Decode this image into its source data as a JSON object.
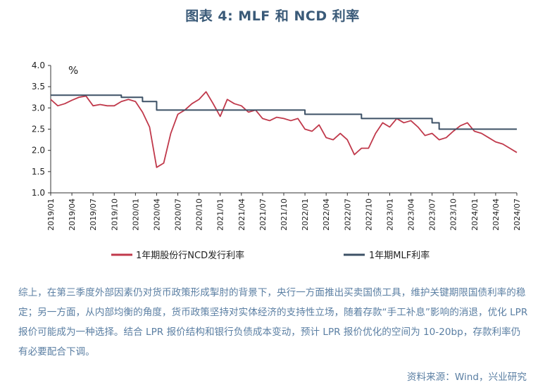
{
  "title": "图表 4:  MLF 和 NCD 利率",
  "paragraph": "综上，在第三季度外部因素仍对货币政策形成掣肘的背景下，央行一方面推出买卖国债工具，维护关键期限国债利率的稳定；另一方面，从内部均衡的角度，货币政策坚持对实体经济的支持性立场，随着存款“手工补息”影响的消退，优化 LPR 报价可能成为一种选择。结合 LPR 报价结构和银行负债成本变动，预计 LPR 报价优化的空间为 10-20bp，存款利率仍有必要配合下调。",
  "source": "资料来源：Wind，兴业研究",
  "colors": {
    "ncd": "#c0394b",
    "mlf": "#3d5166",
    "text_blue": "#5b7fa3",
    "title": "#3a5a78"
  },
  "chart_data": {
    "type": "line",
    "unit": "%",
    "ylim": [
      1.0,
      4.0
    ],
    "yticks": [
      "4.0",
      "3.5",
      "3.0",
      "2.5",
      "2.0",
      "1.5",
      "1.0"
    ],
    "xticks": [
      "2019/01",
      "2019/04",
      "2019/07",
      "2019/10",
      "2020/01",
      "2020/04",
      "2020/07",
      "2020/10",
      "2021/01",
      "2021/04",
      "2021/07",
      "2021/10",
      "2022/01",
      "2022/04",
      "2022/07",
      "2022/10",
      "2023/01",
      "2023/04",
      "2023/07",
      "2023/10",
      "2024/01",
      "2024/04",
      "2024/07"
    ],
    "legend_position": "bottom",
    "grid": false,
    "series": [
      {
        "name": "1年期股份行NCD发行利率",
        "color": "#c0394b",
        "x": [
          "2019/01",
          "2019/02",
          "2019/03",
          "2019/04",
          "2019/05",
          "2019/06",
          "2019/07",
          "2019/08",
          "2019/09",
          "2019/10",
          "2019/11",
          "2019/12",
          "2020/01",
          "2020/02",
          "2020/03",
          "2020/04",
          "2020/05",
          "2020/06",
          "2020/07",
          "2020/08",
          "2020/09",
          "2020/10",
          "2020/11",
          "2020/12",
          "2021/01",
          "2021/02",
          "2021/03",
          "2021/04",
          "2021/05",
          "2021/06",
          "2021/07",
          "2021/08",
          "2021/09",
          "2021/10",
          "2021/11",
          "2021/12",
          "2022/01",
          "2022/02",
          "2022/03",
          "2022/04",
          "2022/05",
          "2022/06",
          "2022/07",
          "2022/08",
          "2022/09",
          "2022/10",
          "2022/11",
          "2022/12",
          "2023/01",
          "2023/02",
          "2023/03",
          "2023/04",
          "2023/05",
          "2023/06",
          "2023/07",
          "2023/08",
          "2023/09",
          "2023/10",
          "2023/11",
          "2023/12",
          "2024/01",
          "2024/02",
          "2024/03",
          "2024/04",
          "2024/05",
          "2024/06",
          "2024/07"
        ],
        "values": [
          3.2,
          3.05,
          3.1,
          3.18,
          3.25,
          3.28,
          3.05,
          3.08,
          3.05,
          3.05,
          3.15,
          3.2,
          3.15,
          2.9,
          2.55,
          1.6,
          1.7,
          2.4,
          2.85,
          2.95,
          3.1,
          3.2,
          3.38,
          3.1,
          2.8,
          3.2,
          3.1,
          3.05,
          2.9,
          2.95,
          2.75,
          2.7,
          2.78,
          2.75,
          2.7,
          2.75,
          2.5,
          2.45,
          2.6,
          2.3,
          2.25,
          2.4,
          2.25,
          1.9,
          2.05,
          2.05,
          2.4,
          2.65,
          2.55,
          2.75,
          2.65,
          2.7,
          2.55,
          2.35,
          2.4,
          2.25,
          2.3,
          2.45,
          2.58,
          2.65,
          2.45,
          2.4,
          2.3,
          2.2,
          2.15,
          2.05,
          1.95
        ]
      },
      {
        "name": "1年期MLF利率",
        "color": "#3d5166",
        "x": [
          "2019/01",
          "2019/11",
          "2020/02",
          "2020/04",
          "2021/12",
          "2022/01",
          "2022/08",
          "2022/09",
          "2023/06",
          "2023/07",
          "2023/08",
          "2024/07"
        ],
        "values": [
          3.3,
          3.25,
          3.15,
          2.95,
          2.95,
          2.85,
          2.85,
          2.75,
          2.75,
          2.65,
          2.5,
          2.5
        ]
      }
    ]
  }
}
